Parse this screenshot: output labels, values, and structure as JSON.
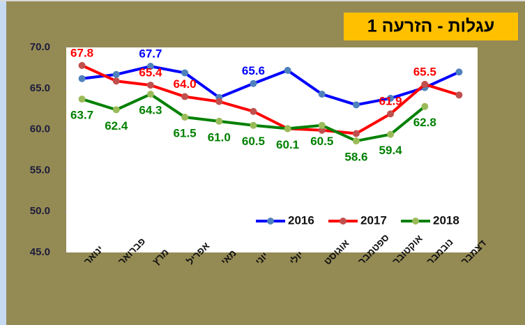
{
  "chart_data": {
    "type": "line",
    "title": "עגלות - הזרעה 1",
    "categories": [
      "ינואר",
      "פברואר",
      "מרץ",
      "אפריל",
      "מאי",
      "יוני",
      "יולי",
      "אוגוסט",
      "ספטמבר",
      "אוקטובר",
      "נובמבר",
      "דצמבר"
    ],
    "series": [
      {
        "name": "2016",
        "color": "#0000ff",
        "marker_color": "#4f81bd",
        "values": [
          66.2,
          66.7,
          67.7,
          66.9,
          63.9,
          65.6,
          67.2,
          64.3,
          63.0,
          63.8,
          65.1,
          67.0
        ],
        "value_labels": [
          null,
          null,
          "67.7",
          null,
          null,
          "65.6",
          null,
          null,
          null,
          null,
          null,
          null
        ]
      },
      {
        "name": "2017",
        "color": "#ff0000",
        "marker_color": "#c0504d",
        "values": [
          67.8,
          65.9,
          65.4,
          64.0,
          63.4,
          62.2,
          60.1,
          59.9,
          59.5,
          61.9,
          65.5,
          64.2
        ],
        "value_labels": [
          "67.8",
          null,
          "65.4",
          "64.0",
          null,
          null,
          null,
          null,
          null,
          "61.9",
          "65.5",
          null
        ]
      },
      {
        "name": "2018",
        "color": "#008000",
        "marker_color": "#9bbb59",
        "values": [
          63.7,
          62.4,
          64.3,
          61.5,
          61.0,
          60.5,
          60.1,
          60.5,
          58.6,
          59.4,
          62.8,
          null
        ],
        "value_labels": [
          "63.7",
          "62.4",
          "64.3",
          "61.5",
          "61.0",
          "60.5",
          "60.1",
          "60.5",
          "58.6",
          "59.4",
          "62.8",
          null
        ]
      }
    ],
    "ylim": [
      45,
      70
    ],
    "yticks": [
      {
        "value": 45,
        "label": "45.0"
      },
      {
        "value": 50,
        "label": "50.0"
      },
      {
        "value": 55,
        "label": "55.0"
      },
      {
        "value": 60,
        "label": "60.0"
      },
      {
        "value": 65,
        "label": "65.0"
      },
      {
        "value": 70,
        "label": "70.0"
      }
    ],
    "legend": "lower right",
    "grid": false
  }
}
